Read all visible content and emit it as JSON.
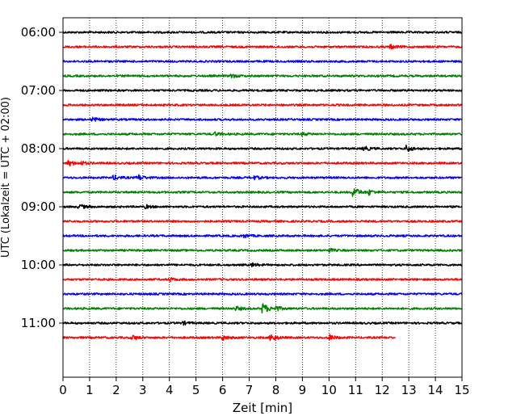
{
  "chart_data": {
    "type": "line",
    "title": "",
    "xlabel": "Zeit  [min]",
    "ylabel": "UTC (Lokalzeit = UTC + 02:00)",
    "xlim": [
      0,
      15
    ],
    "x_ticks": [
      0,
      1,
      2,
      3,
      4,
      5,
      6,
      7,
      8,
      9,
      10,
      11,
      12,
      13,
      14,
      15
    ],
    "y_tick_labels": [
      "06:00",
      "07:00",
      "08:00",
      "09:00",
      "10:00",
      "11:00"
    ],
    "grid": "vertical dotted lines at each minute",
    "legend": "none",
    "trace_minutes_per_line": 15,
    "trace_colors": [
      "#000000",
      "#ff0000",
      "#0000ff",
      "#008000"
    ],
    "traces": [
      {
        "start": "06:00",
        "duration_min": 15,
        "color": "#000000",
        "events": []
      },
      {
        "start": "06:15",
        "duration_min": 15,
        "color": "#ff0000",
        "events": [
          {
            "t": 12.3,
            "amp": 2.5
          }
        ]
      },
      {
        "start": "06:30",
        "duration_min": 15,
        "color": "#0000ff",
        "events": []
      },
      {
        "start": "06:45",
        "duration_min": 15,
        "color": "#008000",
        "events": [
          {
            "t": 6.3,
            "amp": 2.5
          }
        ]
      },
      {
        "start": "07:00",
        "duration_min": 15,
        "color": "#000000",
        "events": []
      },
      {
        "start": "07:15",
        "duration_min": 15,
        "color": "#ff0000",
        "events": []
      },
      {
        "start": "07:30",
        "duration_min": 15,
        "color": "#0000ff",
        "events": [
          {
            "t": 1.1,
            "amp": 2.5
          }
        ]
      },
      {
        "start": "07:45",
        "duration_min": 15,
        "color": "#008000",
        "events": [
          {
            "t": 5.7,
            "amp": 2
          },
          {
            "t": 9.0,
            "amp": 2
          }
        ]
      },
      {
        "start": "08:00",
        "duration_min": 15,
        "color": "#000000",
        "events": [
          {
            "t": 11.3,
            "amp": 3
          },
          {
            "t": 12.9,
            "amp": 4
          }
        ]
      },
      {
        "start": "08:15",
        "duration_min": 15,
        "color": "#ff0000",
        "events": [
          {
            "t": 0.2,
            "amp": 3.5
          },
          {
            "t": 0.7,
            "amp": 2
          }
        ]
      },
      {
        "start": "08:30",
        "duration_min": 15,
        "color": "#0000ff",
        "events": [
          {
            "t": 1.9,
            "amp": 3
          },
          {
            "t": 2.8,
            "amp": 4
          },
          {
            "t": 7.2,
            "amp": 2
          }
        ]
      },
      {
        "start": "08:45",
        "duration_min": 15,
        "color": "#008000",
        "events": [
          {
            "t": 10.9,
            "amp": 7
          },
          {
            "t": 11.5,
            "amp": 3
          }
        ]
      },
      {
        "start": "09:00",
        "duration_min": 15,
        "color": "#000000",
        "events": [
          {
            "t": 0.6,
            "amp": 3
          },
          {
            "t": 3.1,
            "amp": 2
          }
        ]
      },
      {
        "start": "09:15",
        "duration_min": 15,
        "color": "#ff0000",
        "events": []
      },
      {
        "start": "09:30",
        "duration_min": 15,
        "color": "#0000ff",
        "events": [
          {
            "t": 6.8,
            "amp": 2
          }
        ]
      },
      {
        "start": "09:45",
        "duration_min": 15,
        "color": "#008000",
        "events": [
          {
            "t": 10.0,
            "amp": 2
          }
        ]
      },
      {
        "start": "10:00",
        "duration_min": 15,
        "color": "#000000",
        "events": [
          {
            "t": 7.1,
            "amp": 2
          }
        ]
      },
      {
        "start": "10:15",
        "duration_min": 15,
        "color": "#ff0000",
        "events": [
          {
            "t": 4.0,
            "amp": 2
          }
        ]
      },
      {
        "start": "10:30",
        "duration_min": 15,
        "color": "#0000ff",
        "events": []
      },
      {
        "start": "10:45",
        "duration_min": 15,
        "color": "#008000",
        "events": [
          {
            "t": 6.5,
            "amp": 2.5
          },
          {
            "t": 7.5,
            "amp": 7
          },
          {
            "t": 8.0,
            "amp": 3
          }
        ]
      },
      {
        "start": "11:00",
        "duration_min": 15,
        "color": "#000000",
        "events": [
          {
            "t": 4.5,
            "amp": 2
          }
        ]
      },
      {
        "start": "11:15",
        "duration_min": 12.5,
        "color": "#ff0000",
        "events": [
          {
            "t": 2.6,
            "amp": 3
          },
          {
            "t": 6.0,
            "amp": 3
          },
          {
            "t": 7.8,
            "amp": 5
          },
          {
            "t": 10.0,
            "amp": 3.5
          }
        ]
      }
    ]
  }
}
